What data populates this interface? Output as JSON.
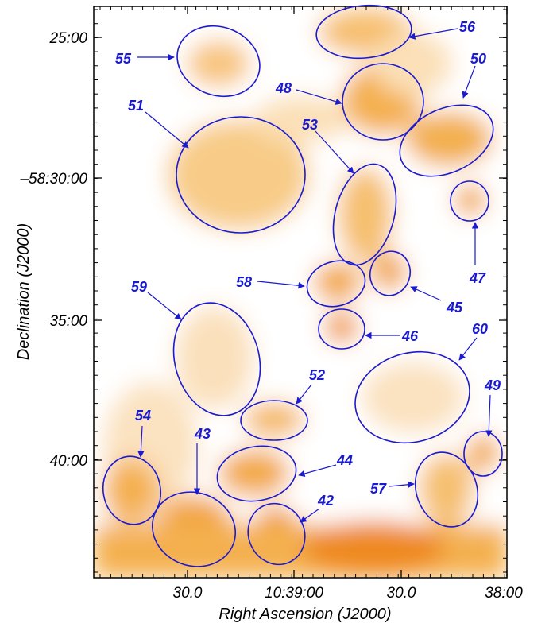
{
  "x_axis": {
    "title": "Right Ascension (J2000)",
    "ticks": [
      "30.0",
      "10:39:00",
      "30.0",
      "38:00"
    ]
  },
  "y_axis": {
    "title": "Declination (J2000)",
    "ticks": [
      "25:00",
      "–58:30:00",
      "35:00",
      "40:00"
    ]
  },
  "regions": [
    {
      "label": "55"
    },
    {
      "label": "56"
    },
    {
      "label": "48"
    },
    {
      "label": "50"
    },
    {
      "label": "51"
    },
    {
      "label": "53"
    },
    {
      "label": "47"
    },
    {
      "label": "58"
    },
    {
      "label": "45"
    },
    {
      "label": "46"
    },
    {
      "label": "59"
    },
    {
      "label": "60"
    },
    {
      "label": "52"
    },
    {
      "label": "49"
    },
    {
      "label": "54"
    },
    {
      "label": "43"
    },
    {
      "label": "44"
    },
    {
      "label": "42"
    },
    {
      "label": "57"
    }
  ]
}
